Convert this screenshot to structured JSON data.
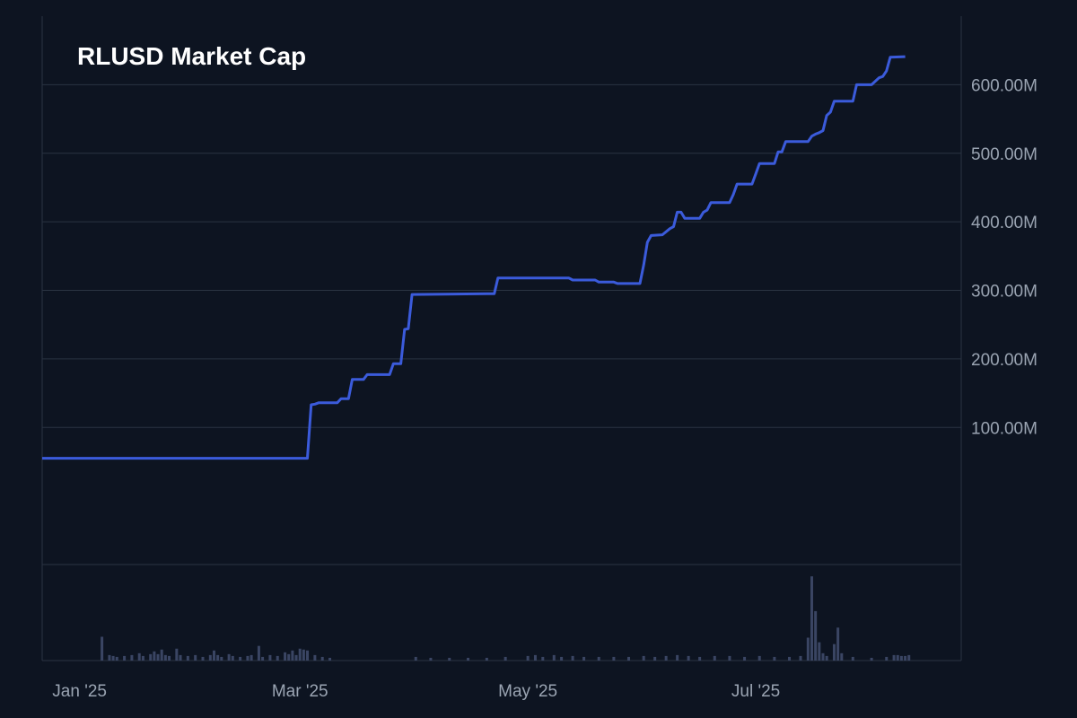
{
  "chart_data": {
    "type": "line",
    "title": "RLUSD Market Cap",
    "colors": {
      "background": "#0d1421",
      "line": "#3b5bdb",
      "grid": "#2a3342",
      "volume": "#3a4563",
      "text": "#9aa4b2",
      "title": "#ffffff"
    },
    "x_axis": {
      "type": "date",
      "range": [
        "2024-12-22",
        "2025-08-25"
      ],
      "tick_labels": [
        {
          "date": "2025-01-01",
          "label": "Jan '25"
        },
        {
          "date": "2025-03-01",
          "label": "Mar '25"
        },
        {
          "date": "2025-05-01",
          "label": "May '25"
        },
        {
          "date": "2025-07-01",
          "label": "Jul '25"
        }
      ]
    },
    "y_axis": {
      "position": "right",
      "ylim": [
        -100,
        700
      ],
      "ticks": [
        100,
        200,
        300,
        400,
        500,
        600
      ],
      "tick_labels": [
        "100.00M",
        "200.00M",
        "300.00M",
        "400.00M",
        "500.00M",
        "600.00M"
      ],
      "unit": "M"
    },
    "grid": true,
    "series": [
      {
        "points": [
          [
            "2024-12-22",
            55
          ],
          [
            "2025-01-15",
            55
          ],
          [
            "2025-02-10",
            55
          ],
          [
            "2025-03-03",
            55
          ],
          [
            "2025-03-04",
            133
          ],
          [
            "2025-03-05",
            134
          ],
          [
            "2025-03-06",
            136
          ],
          [
            "2025-03-11",
            136
          ],
          [
            "2025-03-12",
            142
          ],
          [
            "2025-03-14",
            142
          ],
          [
            "2025-03-15",
            170
          ],
          [
            "2025-03-18",
            170
          ],
          [
            "2025-03-19",
            177
          ],
          [
            "2025-03-25",
            177
          ],
          [
            "2025-03-26",
            193
          ],
          [
            "2025-03-28",
            193
          ],
          [
            "2025-03-29",
            243
          ],
          [
            "2025-03-30",
            244
          ],
          [
            "2025-03-31",
            294
          ],
          [
            "2025-04-20",
            295
          ],
          [
            "2025-04-22",
            295
          ],
          [
            "2025-04-23",
            318
          ],
          [
            "2025-05-12",
            318
          ],
          [
            "2025-05-13",
            315
          ],
          [
            "2025-05-19",
            315
          ],
          [
            "2025-05-20",
            312
          ],
          [
            "2025-05-24",
            312
          ],
          [
            "2025-05-25",
            310
          ],
          [
            "2025-05-31",
            310
          ],
          [
            "2025-06-01",
            337
          ],
          [
            "2025-06-02",
            370
          ],
          [
            "2025-06-03",
            380
          ],
          [
            "2025-06-06",
            381
          ],
          [
            "2025-06-08",
            390
          ],
          [
            "2025-06-09",
            393
          ],
          [
            "2025-06-10",
            414
          ],
          [
            "2025-06-11",
            414
          ],
          [
            "2025-06-12",
            405
          ],
          [
            "2025-06-16",
            405
          ],
          [
            "2025-06-17",
            414
          ],
          [
            "2025-06-18",
            417
          ],
          [
            "2025-06-19",
            428
          ],
          [
            "2025-06-24",
            428
          ],
          [
            "2025-06-25",
            440
          ],
          [
            "2025-06-26",
            455
          ],
          [
            "2025-06-30",
            455
          ],
          [
            "2025-07-01",
            470
          ],
          [
            "2025-07-02",
            485
          ],
          [
            "2025-07-06",
            485
          ],
          [
            "2025-07-07",
            502
          ],
          [
            "2025-07-08",
            502
          ],
          [
            "2025-07-09",
            517
          ],
          [
            "2025-07-15",
            517
          ],
          [
            "2025-07-16",
            525
          ],
          [
            "2025-07-17",
            528
          ],
          [
            "2025-07-18",
            530
          ],
          [
            "2025-07-19",
            533
          ],
          [
            "2025-07-20",
            555
          ],
          [
            "2025-07-21",
            560
          ],
          [
            "2025-07-22",
            576
          ],
          [
            "2025-07-27",
            576
          ],
          [
            "2025-07-28",
            600
          ],
          [
            "2025-08-01",
            600
          ],
          [
            "2025-08-03",
            610
          ],
          [
            "2025-08-04",
            612
          ],
          [
            "2025-08-05",
            620
          ],
          [
            "2025-08-06",
            640
          ],
          [
            "2025-08-10",
            641
          ]
        ]
      }
    ],
    "volume": {
      "relative_max": 1.0,
      "bars": [
        [
          "2025-01-07",
          0.26
        ],
        [
          "2025-01-09",
          0.06
        ],
        [
          "2025-01-10",
          0.05
        ],
        [
          "2025-01-11",
          0.04
        ],
        [
          "2025-01-13",
          0.05
        ],
        [
          "2025-01-15",
          0.06
        ],
        [
          "2025-01-17",
          0.08
        ],
        [
          "2025-01-18",
          0.05
        ],
        [
          "2025-01-20",
          0.07
        ],
        [
          "2025-01-21",
          0.1
        ],
        [
          "2025-01-22",
          0.07
        ],
        [
          "2025-01-23",
          0.12
        ],
        [
          "2025-01-24",
          0.06
        ],
        [
          "2025-01-25",
          0.05
        ],
        [
          "2025-01-27",
          0.13
        ],
        [
          "2025-01-28",
          0.06
        ],
        [
          "2025-01-30",
          0.05
        ],
        [
          "2025-02-01",
          0.06
        ],
        [
          "2025-02-03",
          0.04
        ],
        [
          "2025-02-05",
          0.06
        ],
        [
          "2025-02-06",
          0.11
        ],
        [
          "2025-02-07",
          0.06
        ],
        [
          "2025-02-08",
          0.04
        ],
        [
          "2025-02-10",
          0.07
        ],
        [
          "2025-02-11",
          0.05
        ],
        [
          "2025-02-13",
          0.04
        ],
        [
          "2025-02-15",
          0.05
        ],
        [
          "2025-02-16",
          0.06
        ],
        [
          "2025-02-18",
          0.16
        ],
        [
          "2025-02-19",
          0.04
        ],
        [
          "2025-02-21",
          0.06
        ],
        [
          "2025-02-23",
          0.05
        ],
        [
          "2025-02-25",
          0.09
        ],
        [
          "2025-02-26",
          0.07
        ],
        [
          "2025-02-27",
          0.11
        ],
        [
          "2025-02-28",
          0.06
        ],
        [
          "2025-03-01",
          0.13
        ],
        [
          "2025-03-02",
          0.12
        ],
        [
          "2025-03-03",
          0.11
        ],
        [
          "2025-03-05",
          0.06
        ],
        [
          "2025-03-07",
          0.04
        ],
        [
          "2025-03-09",
          0.03
        ],
        [
          "2025-04-01",
          0.04
        ],
        [
          "2025-04-05",
          0.03
        ],
        [
          "2025-04-10",
          0.03
        ],
        [
          "2025-04-15",
          0.03
        ],
        [
          "2025-04-20",
          0.03
        ],
        [
          "2025-04-25",
          0.04
        ],
        [
          "2025-05-01",
          0.05
        ],
        [
          "2025-05-03",
          0.06
        ],
        [
          "2025-05-05",
          0.04
        ],
        [
          "2025-05-08",
          0.06
        ],
        [
          "2025-05-10",
          0.04
        ],
        [
          "2025-05-13",
          0.05
        ],
        [
          "2025-05-16",
          0.04
        ],
        [
          "2025-05-20",
          0.04
        ],
        [
          "2025-05-24",
          0.04
        ],
        [
          "2025-05-28",
          0.04
        ],
        [
          "2025-06-01",
          0.05
        ],
        [
          "2025-06-04",
          0.04
        ],
        [
          "2025-06-07",
          0.05
        ],
        [
          "2025-06-10",
          0.06
        ],
        [
          "2025-06-13",
          0.05
        ],
        [
          "2025-06-16",
          0.04
        ],
        [
          "2025-06-20",
          0.05
        ],
        [
          "2025-06-24",
          0.05
        ],
        [
          "2025-06-28",
          0.04
        ],
        [
          "2025-07-02",
          0.05
        ],
        [
          "2025-07-06",
          0.04
        ],
        [
          "2025-07-10",
          0.04
        ],
        [
          "2025-07-13",
          0.05
        ],
        [
          "2025-07-15",
          0.25
        ],
        [
          "2025-07-16",
          0.92
        ],
        [
          "2025-07-17",
          0.54
        ],
        [
          "2025-07-18",
          0.2
        ],
        [
          "2025-07-19",
          0.08
        ],
        [
          "2025-07-20",
          0.05
        ],
        [
          "2025-07-22",
          0.18
        ],
        [
          "2025-07-23",
          0.36
        ],
        [
          "2025-07-24",
          0.08
        ],
        [
          "2025-07-27",
          0.04
        ],
        [
          "2025-08-01",
          0.03
        ],
        [
          "2025-08-05",
          0.04
        ],
        [
          "2025-08-07",
          0.06
        ],
        [
          "2025-08-08",
          0.06
        ],
        [
          "2025-08-09",
          0.05
        ],
        [
          "2025-08-10",
          0.05
        ],
        [
          "2025-08-11",
          0.06
        ]
      ]
    }
  }
}
